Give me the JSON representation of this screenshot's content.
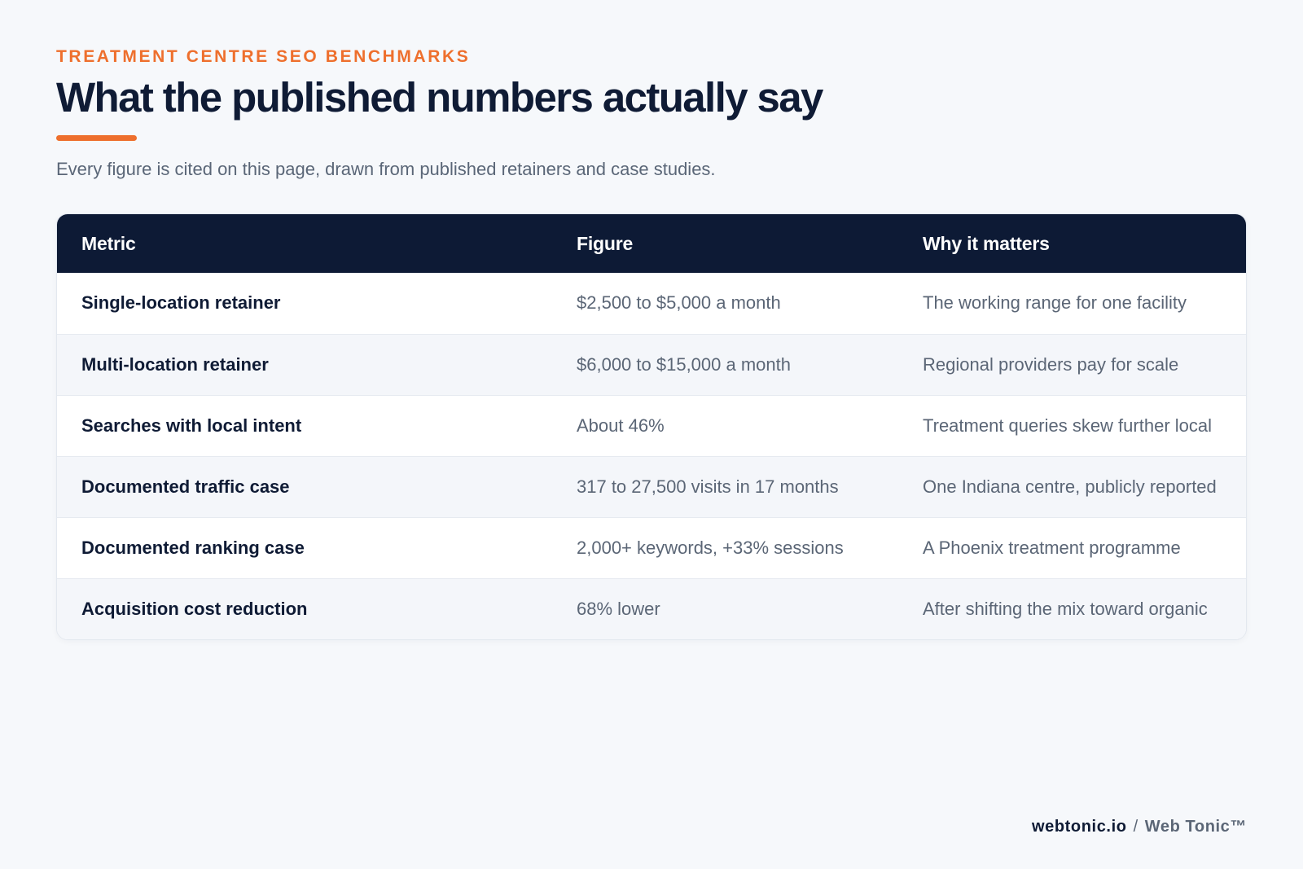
{
  "header": {
    "eyebrow": "TREATMENT CENTRE SEO BENCHMARKS",
    "title": "What the published numbers actually say",
    "subtitle": "Every figure is cited on this page, drawn from published retainers and case studies."
  },
  "table": {
    "columns": [
      "Metric",
      "Figure",
      "Why it matters"
    ],
    "rows": [
      {
        "metric": "Single-location retainer",
        "figure": "$2,500 to $5,000 a month",
        "why": "The working range for one facility"
      },
      {
        "metric": "Multi-location retainer",
        "figure": "$6,000 to $15,000 a month",
        "why": "Regional providers pay for scale"
      },
      {
        "metric": "Searches with local intent",
        "figure": "About 46%",
        "why": "Treatment queries skew further local"
      },
      {
        "metric": "Documented traffic case",
        "figure": "317 to 27,500 visits in 17 months",
        "why": "One Indiana centre, publicly reported"
      },
      {
        "metric": "Documented ranking case",
        "figure": "2,000+ keywords, +33% sessions",
        "why": "A Phoenix treatment programme"
      },
      {
        "metric": "Acquisition cost reduction",
        "figure": "68% lower",
        "why": "After shifting the mix toward organic"
      }
    ]
  },
  "footer": {
    "domain": "webtonic.io",
    "separator": "/",
    "brand": "Web Tonic™"
  },
  "colors": {
    "accent": "#ee6f2d",
    "header_bg": "#0d1a35",
    "page_bg": "#f6f8fb",
    "text_dark": "#0f1b35",
    "text_muted": "#5b6676"
  }
}
